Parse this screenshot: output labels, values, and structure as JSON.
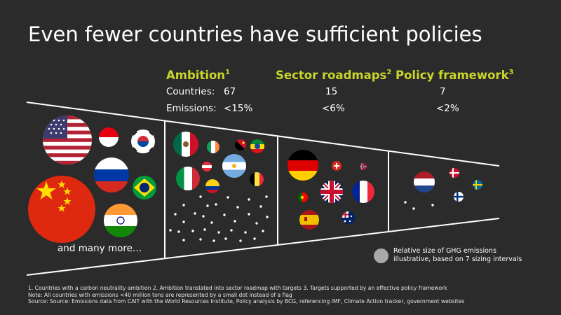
{
  "title": "Even fewer countries have sufficient policies",
  "columns": [
    {
      "label": "Ambition",
      "note": "1",
      "countries": "67",
      "emissions": "<15%"
    },
    {
      "label": "Sector roadmaps",
      "note": "2",
      "countries": "15",
      "emissions": "<6%"
    },
    {
      "label": "Policy framework",
      "note": "3",
      "countries": "7",
      "emissions": "<2%"
    }
  ],
  "row_labels": {
    "countries": "Countries:",
    "emissions": "Emissions:"
  },
  "and_many_more": "and many more…",
  "legend": {
    "line1": "Relative size of GHG emissions",
    "line2": "illustrative, based on 7 sizing intervals"
  },
  "footnotes": {
    "line1": "1. Countries with a carbon neutrality ambition  2. Ambition translated into sector roadmap with targets  3. Targets supported by an effective policy framework",
    "line2": "Note: All countries with emissions <40 million tons are represented by a small dot instead of a flag",
    "line3": "Source: Source: Emissions data from CAIT with the World Resources Institute, Policy analysis by BCG, referencing IMF, Climate Action tracker, government websites"
  },
  "colors": {
    "background": "#2b2b2b",
    "accent": "#c8d62a",
    "text": "#ffffff",
    "legend_dot": "#a8a8a8"
  },
  "flags": {
    "ambition": [
      "united-states",
      "indonesia",
      "south-korea",
      "china",
      "russia",
      "brazil",
      "india",
      "mexico",
      "ireland",
      "papua-new-guinea",
      "ethiopia",
      "austria",
      "argentina",
      "italy",
      "belgium",
      "colombia"
    ],
    "sector_roadmaps": [
      "germany",
      "switzerland",
      "norway",
      "united-kingdom",
      "france",
      "portugal",
      "spain",
      "australia"
    ],
    "policy_framework": [
      "netherlands",
      "denmark",
      "sweden",
      "finland"
    ]
  }
}
